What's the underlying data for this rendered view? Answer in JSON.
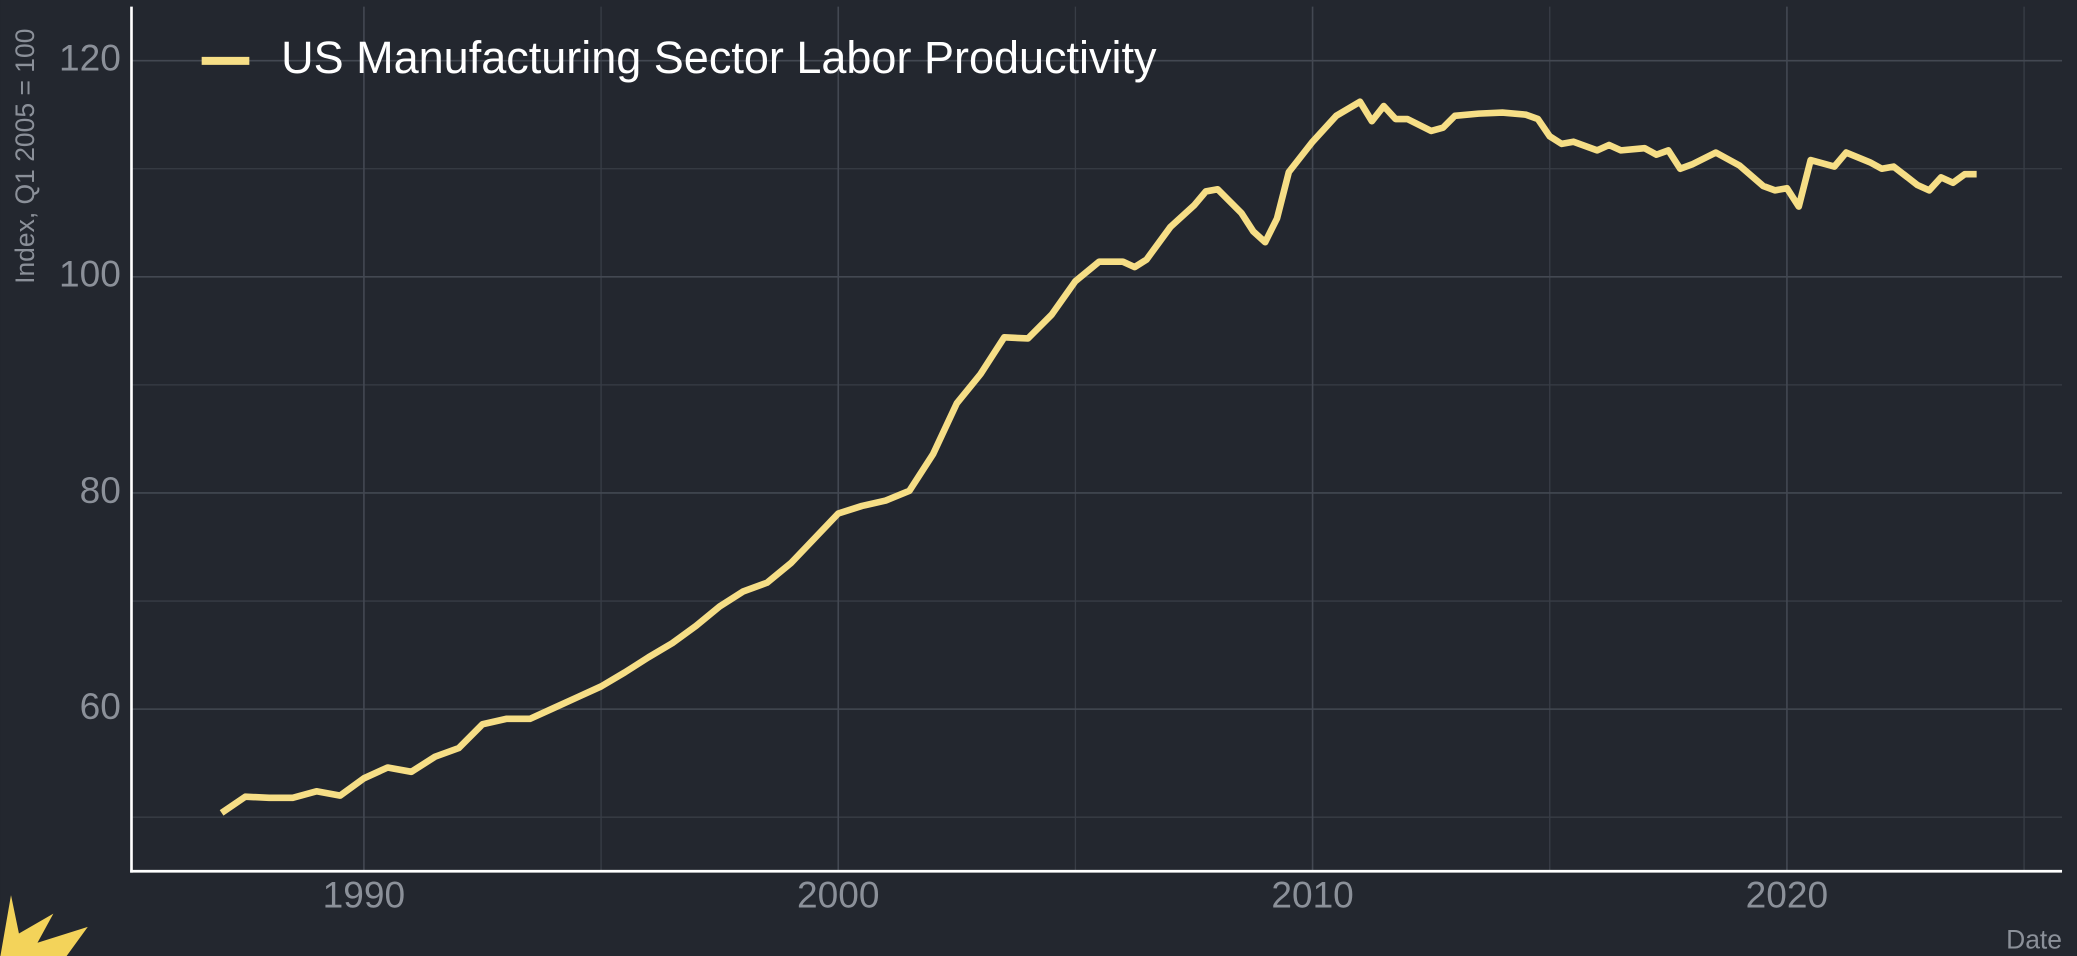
{
  "chart_data": {
    "type": "line",
    "legend": "top-left",
    "ylabel": "Index, Q1 2005 = 100",
    "xlabel": "Date",
    "grid": true,
    "xlim": [
      1985.1,
      2025.8
    ],
    "ylim": [
      45,
      125
    ],
    "xticks": [
      1990,
      2000,
      2010,
      2020
    ],
    "yticks": [
      60,
      80,
      100,
      120
    ],
    "xminor": [
      1995,
      2005,
      2015,
      2025
    ],
    "yminor": [
      50,
      70,
      90,
      110
    ],
    "x": [
      1987.0,
      1987.5,
      1988.0,
      1988.5,
      1989.0,
      1989.5,
      1990.0,
      1990.5,
      1991.0,
      1991.5,
      1992.0,
      1992.5,
      1993.0,
      1993.5,
      1994.0,
      1994.5,
      1995.0,
      1995.5,
      1996.0,
      1996.5,
      1997.0,
      1997.5,
      1998.0,
      1998.5,
      1999.0,
      1999.5,
      2000.0,
      2000.5,
      2001.0,
      2001.5,
      2002.0,
      2002.5,
      2003.0,
      2003.5,
      2004.0,
      2004.5,
      2005.0,
      2005.5,
      2006.0,
      2006.25,
      2006.5,
      2007.0,
      2007.5,
      2007.75,
      2008.0,
      2008.5,
      2008.75,
      2009.0,
      2009.25,
      2009.5,
      2010.0,
      2010.5,
      2011.0,
      2011.25,
      2011.5,
      2011.75,
      2012.0,
      2012.5,
      2012.75,
      2013.0,
      2013.5,
      2014.0,
      2014.5,
      2014.75,
      2015.0,
      2015.25,
      2015.5,
      2016.0,
      2016.25,
      2016.5,
      2017.0,
      2017.25,
      2017.5,
      2017.75,
      2018.0,
      2018.5,
      2019.0,
      2019.5,
      2019.75,
      2020.0,
      2020.25,
      2020.5,
      2021.0,
      2021.25,
      2021.75,
      2022.0,
      2022.25,
      2022.75,
      2023.0,
      2023.25,
      2023.5,
      2023.75,
      2024.0
    ],
    "series": [
      {
        "name": "US Manufacturing Sector Labor Productivity",
        "color": "#f6de86",
        "values": [
          50.4,
          51.9,
          51.8,
          51.8,
          52.4,
          52.0,
          53.6,
          54.6,
          54.2,
          55.6,
          56.4,
          58.6,
          59.1,
          59.1,
          60.1,
          61.1,
          62.1,
          63.4,
          64.8,
          66.1,
          67.7,
          69.5,
          70.9,
          71.7,
          73.5,
          75.8,
          78.1,
          78.8,
          79.3,
          80.2,
          83.6,
          88.3,
          91.0,
          94.4,
          94.3,
          96.5,
          99.6,
          101.4,
          101.4,
          100.9,
          101.6,
          104.6,
          106.6,
          107.9,
          108.1,
          105.9,
          104.2,
          103.2,
          105.4,
          109.7,
          112.5,
          114.9,
          116.2,
          114.4,
          115.8,
          114.6,
          114.6,
          113.5,
          113.8,
          114.9,
          115.1,
          115.2,
          115.0,
          114.6,
          113.0,
          112.3,
          112.5,
          111.7,
          112.2,
          111.7,
          111.9,
          111.3,
          111.7,
          110.0,
          110.4,
          111.5,
          110.3,
          108.4,
          108.0,
          108.2,
          106.5,
          110.8,
          110.2,
          111.5,
          110.6,
          110.0,
          110.2,
          108.5,
          108.0,
          109.2,
          108.7,
          109.5,
          109.5
        ]
      }
    ]
  }
}
